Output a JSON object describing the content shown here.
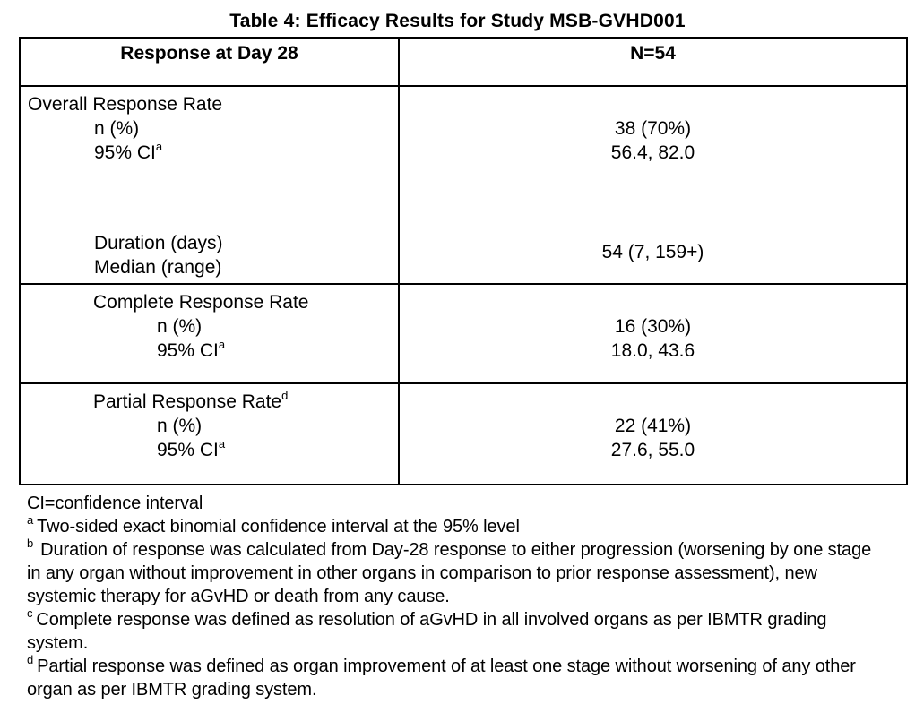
{
  "page": {
    "title": "Table 4: Efficacy Results for Study MSB-GVHD001"
  },
  "table": {
    "header": {
      "response_col": "Response at Day 28",
      "n_col": "N=54"
    },
    "overall": {
      "title": "Overall Response Rate",
      "n_label": "n (%)",
      "n_value": "38 (70%)",
      "ci_label": "95% CI",
      "ci_sup": "a",
      "ci_value": "56.4, 82.0",
      "duration_label": "Duration (days)",
      "median_label": "Median (range)",
      "duration_value": "54 (7, 159+)"
    },
    "complete": {
      "title": "Complete Response Rate",
      "n_label": "n (%)",
      "n_value": "16 (30%)",
      "ci_label": "95% CI",
      "ci_sup": "a",
      "ci_value": "18.0, 43.6"
    },
    "partial": {
      "title": "Partial Response Rate",
      "title_sup": "d",
      "n_label": "n (%)",
      "n_value": "22 (41%)",
      "ci_label": "95% CI",
      "ci_sup": "a",
      "ci_value": "27.6, 55.0"
    }
  },
  "footnotes": {
    "ci_definition": "CI=confidence interval",
    "a_sup": "a",
    "a_text": "Two-sided exact binomial confidence interval at the 95% level",
    "b_sup": "b",
    "b_text": "Duration of response was calculated from Day-28 response to either progression (worsening by one stage in any organ without improvement in other organs in comparison to prior response assessment), new systemic therapy for aGvHD or death from any cause.",
    "c_sup": "c",
    "c_text": "Complete response was defined as resolution of aGvHD in all involved organs as per IBMTR grading system.",
    "d_sup": "d",
    "d_text": "Partial response was defined as organ improvement of at least one stage without worsening of any other organ as per IBMTR grading system."
  }
}
